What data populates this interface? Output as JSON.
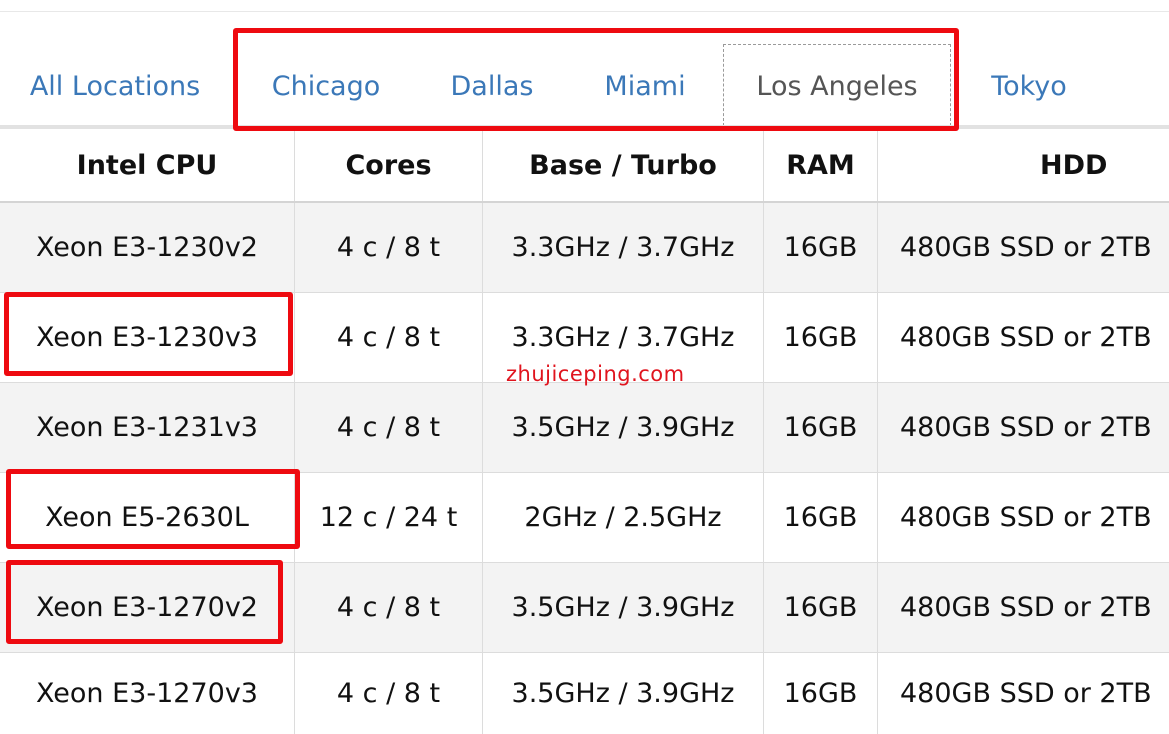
{
  "tabs": [
    {
      "label": "All Locations"
    },
    {
      "label": "Chicago"
    },
    {
      "label": "Dallas"
    },
    {
      "label": "Miami"
    },
    {
      "label": "Los Angeles"
    },
    {
      "label": "Tokyo"
    }
  ],
  "active_tab": "Los Angeles",
  "table": {
    "headers": [
      "Intel CPU",
      "Cores",
      "Base / Turbo",
      "RAM",
      "HDD"
    ],
    "rows": [
      [
        "Xeon E3-1230v2",
        "4 c / 8 t",
        "3.3GHz / 3.7GHz",
        "16GB",
        "480GB SSD or 2TB"
      ],
      [
        "Xeon E3-1230v3",
        "4 c / 8 t",
        "3.3GHz / 3.7GHz",
        "16GB",
        "480GB SSD or 2TB"
      ],
      [
        "Xeon E3-1231v3",
        "4 c / 8 t",
        "3.5GHz / 3.9GHz",
        "16GB",
        "480GB SSD or 2TB"
      ],
      [
        "Xeon E5-2630L",
        "12 c / 24 t",
        "2GHz / 2.5GHz",
        "16GB",
        "480GB SSD or 2TB"
      ],
      [
        "Xeon E3-1270v2",
        "4 c / 8 t",
        "3.5GHz / 3.9GHz",
        "16GB",
        "480GB SSD or 2TB"
      ],
      [
        "Xeon E3-1270v3",
        "4 c / 8 t",
        "3.5GHz / 3.9GHz",
        "16GB",
        "480GB SSD or 2TB"
      ]
    ]
  },
  "watermark": "zhujiceping.com",
  "colors": {
    "tab_link": "#3b78b8",
    "annotation": "#ee0a10",
    "row_stripe": "#f3f3f3"
  }
}
